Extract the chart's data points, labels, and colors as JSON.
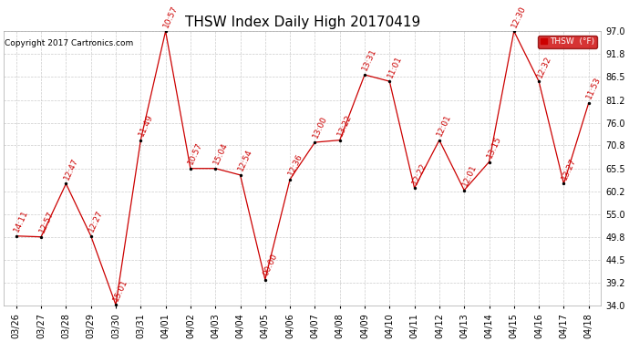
{
  "title": "THSW Index Daily High 20170419",
  "copyright": "Copyright 2017 Cartronics.com",
  "legend_label": "THSW  (°F)",
  "background_color": "#ffffff",
  "plot_bg_color": "#ffffff",
  "grid_color": "#cccccc",
  "line_color": "#cc0000",
  "marker_color": "#000000",
  "label_color": "#cc0000",
  "legend_bg": "#cc0000",
  "legend_text_color": "#ffffff",
  "ylim": [
    34.0,
    97.0
  ],
  "yticks": [
    34.0,
    39.2,
    44.5,
    49.8,
    55.0,
    60.2,
    65.5,
    70.8,
    76.0,
    81.2,
    86.5,
    91.8,
    97.0
  ],
  "dates": [
    "03/26",
    "03/27",
    "03/28",
    "03/29",
    "03/30",
    "03/31",
    "04/01",
    "04/02",
    "04/03",
    "04/04",
    "04/05",
    "04/06",
    "04/07",
    "04/08",
    "04/09",
    "04/10",
    "04/11",
    "04/12",
    "04/13",
    "04/14",
    "04/15",
    "04/16",
    "04/17",
    "04/18"
  ],
  "values": [
    50.0,
    49.8,
    62.0,
    50.0,
    34.2,
    72.0,
    97.0,
    65.5,
    65.5,
    64.0,
    40.0,
    63.0,
    71.5,
    72.0,
    87.0,
    85.5,
    61.0,
    72.0,
    60.5,
    67.0,
    97.0,
    85.5,
    62.0,
    80.5
  ],
  "time_labels": [
    "14:11",
    "12:57",
    "12:47",
    "12:27",
    "15:01",
    "11:49",
    "10:57",
    "10:57",
    "15:04",
    "12:54",
    "00:00",
    "12:36",
    "13:00",
    "13:22",
    "13:31",
    "11:01",
    "12:22",
    "12:01",
    "12:01",
    "13:15",
    "12:30",
    "12:32",
    "13:27",
    "11:53"
  ],
  "title_fontsize": 11,
  "tick_fontsize": 7,
  "label_fontsize": 6.5,
  "copyright_fontsize": 6.5
}
